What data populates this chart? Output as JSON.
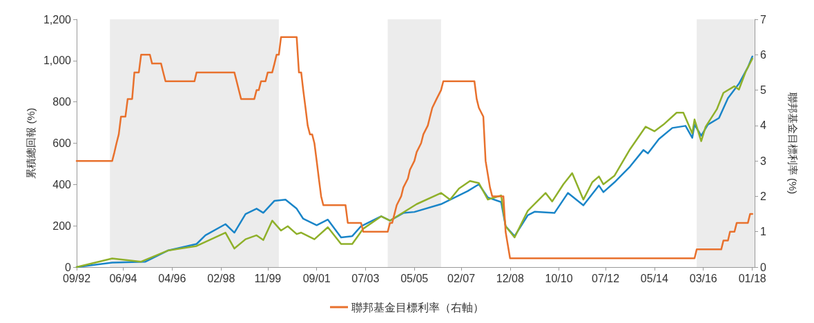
{
  "chart_data": {
    "type": "line",
    "ylabel": "累積總回報 (%)",
    "y2label": "聯邦基金目標利率 (%)",
    "xlim": [
      "1992-09",
      "2018-02"
    ],
    "xticks": [
      {
        "value": "1992-09",
        "label": "09/92"
      },
      {
        "value": "1994-06",
        "label": "06/94"
      },
      {
        "value": "1996-04",
        "label": "04/96"
      },
      {
        "value": "1998-02",
        "label": "02/98"
      },
      {
        "value": "1999-11",
        "label": "11/99"
      },
      {
        "value": "2001-09",
        "label": "09/01"
      },
      {
        "value": "2003-07",
        "label": "07/03"
      },
      {
        "value": "2005-05",
        "label": "05/05"
      },
      {
        "value": "2007-02",
        "label": "02/07"
      },
      {
        "value": "2008-12",
        "label": "12/08"
      },
      {
        "value": "2010-10",
        "label": "10/10"
      },
      {
        "value": "2012-07",
        "label": "07/12"
      },
      {
        "value": "2014-05",
        "label": "05/14"
      },
      {
        "value": "2016-03",
        "label": "03/16"
      },
      {
        "value": "2018-01",
        "label": "01/18"
      }
    ],
    "ylim": [
      0,
      1200
    ],
    "yticks": [
      0,
      200,
      400,
      600,
      800,
      {
        "value": 1000,
        "label": "1,000"
      },
      {
        "value": 1200,
        "label": "1,200"
      }
    ],
    "y2lim": [
      0,
      7
    ],
    "y2ticks": [
      0,
      1,
      2,
      3,
      4,
      5,
      6,
      7
    ],
    "grid": false,
    "legend": "bottom",
    "line_style": "solid",
    "marker": "none",
    "bands": [
      {
        "axis": "x",
        "from": "1993-12",
        "to": "2000-04",
        "color": "#ececec"
      },
      {
        "axis": "x",
        "from": "2004-05",
        "to": "2006-05",
        "color": "#ececec"
      },
      {
        "axis": "x",
        "from": "2015-12",
        "to": "2018-02",
        "color": "#ececec"
      }
    ],
    "series": [
      {
        "color": "#1a85c8",
        "x": [
          "1992-09",
          "1994-01",
          "1995-04",
          "1996-02",
          "1997-03",
          "1997-07",
          "1998-04",
          "1998-08",
          "1999-01",
          "1999-06",
          "1999-09",
          "2000-02",
          "2000-07",
          "2000-12",
          "2001-03",
          "2001-09",
          "2002-02",
          "2002-08",
          "2003-01",
          "2003-05",
          "2004-02",
          "2004-06",
          "2004-12",
          "2005-05",
          "2006-05",
          "2007-05",
          "2007-10",
          "2008-02",
          "2008-08",
          "2008-10",
          "2009-02",
          "2009-08",
          "2009-11",
          "2010-08",
          "2011-02",
          "2011-09",
          "2012-04",
          "2012-06",
          "2012-11",
          "2013-06",
          "2013-12",
          "2014-02",
          "2014-07",
          "2015-01",
          "2015-07",
          "2015-10",
          "2015-11",
          "2016-02",
          "2016-05",
          "2016-10",
          "2017-02",
          "2017-07",
          "2017-11",
          "2018-01"
        ],
        "values": [
          0,
          22,
          26,
          80,
          112,
          154,
          208,
          167,
          257,
          283,
          263,
          321,
          327,
          283,
          234,
          203,
          230,
          144,
          150,
          198,
          246,
          225,
          262,
          267,
          305,
          368,
          401,
          337,
          315,
          198,
          150,
          251,
          268,
          262,
          359,
          299,
          395,
          363,
          411,
          487,
          567,
          551,
          620,
          674,
          684,
          626,
          690,
          636,
          690,
          722,
          818,
          888,
          968,
          1020
        ]
      },
      {
        "color": "#8fb02a",
        "x": [
          "1992-09",
          "1994-01",
          "1995-02",
          "1996-02",
          "1997-03",
          "1998-04",
          "1998-08",
          "1999-01",
          "1999-06",
          "1999-09",
          "2000-01",
          "2000-05",
          "2000-08",
          "2000-12",
          "2001-02",
          "2001-08",
          "2002-02",
          "2002-08",
          "2003-01",
          "2003-06",
          "2004-02",
          "2004-06",
          "2005-06",
          "2006-05",
          "2006-09",
          "2007-01",
          "2007-06",
          "2007-10",
          "2008-02",
          "2008-08",
          "2008-10",
          "2009-02",
          "2009-08",
          "2010-04",
          "2010-07",
          "2010-12",
          "2011-04",
          "2011-09",
          "2012-01",
          "2012-04",
          "2012-06",
          "2012-11",
          "2013-06",
          "2014-01",
          "2014-05",
          "2014-09",
          "2015-03",
          "2015-06",
          "2015-10",
          "2015-11",
          "2016-02",
          "2016-04",
          "2016-09",
          "2016-12",
          "2017-05",
          "2017-07",
          "2017-10",
          "2018-01"
        ],
        "values": [
          0,
          42,
          26,
          80,
          102,
          167,
          90,
          135,
          154,
          131,
          225,
          177,
          198,
          160,
          167,
          135,
          193,
          112,
          112,
          186,
          246,
          225,
          305,
          359,
          327,
          380,
          417,
          407,
          327,
          347,
          198,
          144,
          273,
          359,
          318,
          401,
          455,
          327,
          411,
          439,
          401,
          443,
          571,
          680,
          658,
          690,
          748,
          748,
          648,
          715,
          610,
          680,
          764,
          844,
          876,
          860,
          946,
          1010
        ]
      },
      {
        "name": "聯邦基金目標利率（右軸）",
        "color": "#e8712d",
        "axis": "y2",
        "x": [
          "1992-09",
          "1994-01",
          "1994-02",
          "1994-03",
          "1994-04",
          "1994-05",
          "1994-07",
          "1994-08",
          "1994-10",
          "1994-11",
          "1995-01",
          "1995-02",
          "1995-06",
          "1995-07",
          "1995-11",
          "1995-12",
          "1996-01",
          "1997-02",
          "1997-03",
          "1998-08",
          "1998-09",
          "1998-10",
          "1998-11",
          "1999-05",
          "1999-06",
          "1999-07",
          "1999-08",
          "1999-10",
          "1999-11",
          "2000-01",
          "2000-02",
          "2000-03",
          "2000-04",
          "2000-05",
          "2000-12",
          "2001-01",
          "2001-02",
          "2001-03",
          "2001-04",
          "2001-05",
          "2001-06",
          "2001-07",
          "2001-08",
          "2001-09",
          "2001-10",
          "2001-11",
          "2001-12",
          "2002-10",
          "2002-11",
          "2003-05",
          "2003-06",
          "2004-05",
          "2004-06",
          "2004-07",
          "2004-08",
          "2004-09",
          "2004-11",
          "2004-12",
          "2005-02",
          "2005-03",
          "2005-05",
          "2005-06",
          "2005-08",
          "2005-09",
          "2005-11",
          "2005-12",
          "2006-01",
          "2006-03",
          "2006-05",
          "2006-06",
          "2007-08",
          "2007-09",
          "2007-10",
          "2007-12",
          "2008-01",
          "2008-03",
          "2008-04",
          "2008-09",
          "2008-10",
          "2008-12",
          "2015-11",
          "2015-12",
          "2016-11",
          "2016-12",
          "2017-02",
          "2017-03",
          "2017-05",
          "2017-06",
          "2017-11",
          "2017-12",
          "2018-01"
        ],
        "values": [
          3,
          3,
          3.25,
          3.5,
          3.75,
          4.25,
          4.25,
          4.75,
          4.75,
          5.5,
          5.5,
          6,
          6,
          5.75,
          5.75,
          5.5,
          5.25,
          5.25,
          5.5,
          5.5,
          5.25,
          5,
          4.75,
          4.75,
          5,
          5,
          5.25,
          5.25,
          5.5,
          5.5,
          5.75,
          6,
          6,
          6.5,
          6.5,
          5.5,
          5.5,
          5,
          4.5,
          4,
          3.75,
          3.75,
          3.5,
          3,
          2.5,
          2,
          1.75,
          1.75,
          1.25,
          1.25,
          1,
          1,
          1.25,
          1.25,
          1.5,
          1.75,
          2,
          2.25,
          2.5,
          2.75,
          3,
          3.25,
          3.5,
          3.75,
          4,
          4.25,
          4.5,
          4.75,
          5,
          5.25,
          5.25,
          4.75,
          4.5,
          4.25,
          3,
          2.25,
          2,
          2,
          1,
          0.25,
          0.25,
          0.5,
          0.5,
          0.75,
          0.75,
          1,
          1,
          1.25,
          1.25,
          1.5,
          1.5
        ]
      }
    ]
  }
}
